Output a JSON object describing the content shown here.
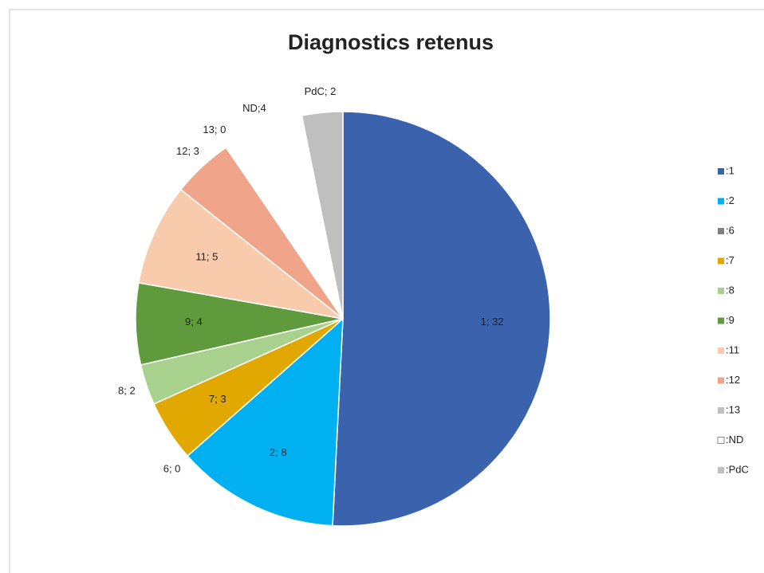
{
  "chart_data": {
    "type": "pie",
    "title": "Diagnostics retenus",
    "categories": [
      ":1",
      ":2",
      ":6",
      ":7",
      ":8",
      ":9",
      ":11",
      ":12",
      ":13",
      ":ND",
      ":PdC"
    ],
    "values": [
      32,
      8,
      0,
      3,
      2,
      4,
      5,
      3,
      0,
      4,
      2
    ],
    "value_labels": [
      "1; 32",
      "2; 8",
      "6; 0",
      "7; 3",
      "8; 2",
      "9; 4",
      "11; 5",
      "12; 3",
      "13; 0",
      "ND;4",
      "PdC; 2"
    ],
    "colors": [
      "#3a62ad",
      "#00b0f0",
      "#808080",
      "#e0a800",
      "#a9d18e",
      "#5f9a3c",
      "#f8cbad",
      "#f0a58a",
      "#bfbfbf",
      "#ffffff",
      "#bfbfbf"
    ]
  }
}
